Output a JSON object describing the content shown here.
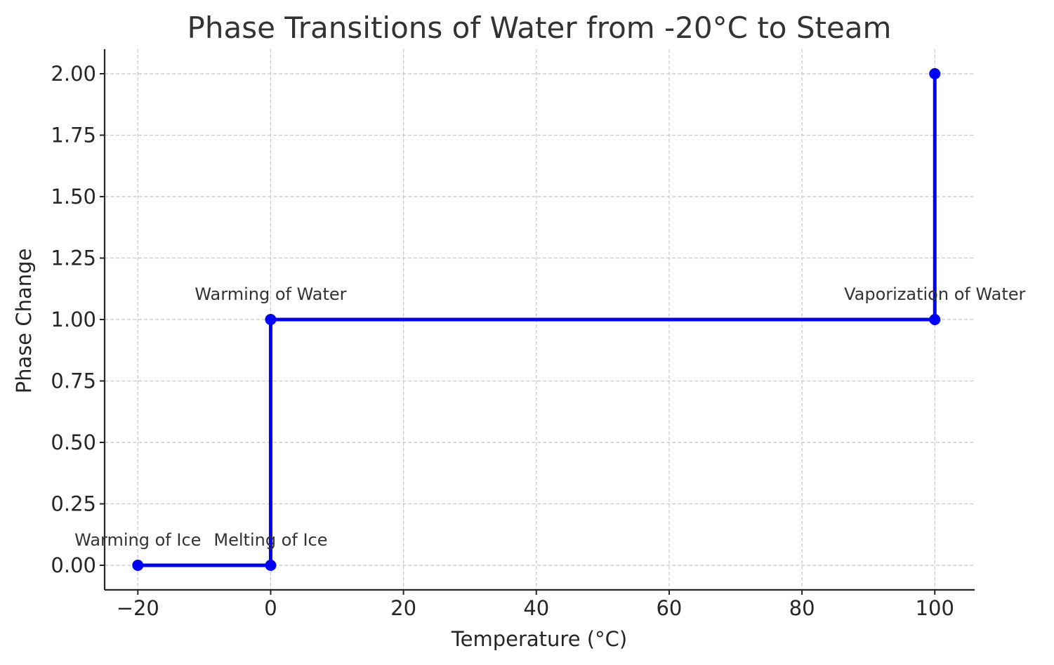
{
  "chart_data": {
    "type": "line",
    "title": "Phase Transitions of Water from -20°C to Steam",
    "xlabel": "Temperature (°C)",
    "ylabel": "Phase Change",
    "xlim": [
      -25,
      106
    ],
    "ylim": [
      -0.1,
      2.1
    ],
    "grid": true,
    "x_ticks": [
      {
        "value": -20,
        "label": "−20"
      },
      {
        "value": 0,
        "label": "0"
      },
      {
        "value": 20,
        "label": "20"
      },
      {
        "value": 40,
        "label": "40"
      },
      {
        "value": 60,
        "label": "60"
      },
      {
        "value": 80,
        "label": "80"
      },
      {
        "value": 100,
        "label": "100"
      }
    ],
    "y_ticks": [
      {
        "value": 0.0,
        "label": "0.00"
      },
      {
        "value": 0.25,
        "label": "0.25"
      },
      {
        "value": 0.5,
        "label": "0.50"
      },
      {
        "value": 0.75,
        "label": "0.75"
      },
      {
        "value": 1.0,
        "label": "1.00"
      },
      {
        "value": 1.25,
        "label": "1.25"
      },
      {
        "value": 1.5,
        "label": "1.50"
      },
      {
        "value": 1.75,
        "label": "1.75"
      },
      {
        "value": 2.0,
        "label": "2.00"
      }
    ],
    "series": [
      {
        "color": "#0000ff",
        "step": true,
        "points": [
          {
            "x": -20,
            "y": 0
          },
          {
            "x": 0,
            "y": 0
          },
          {
            "x": 0,
            "y": 1
          },
          {
            "x": 100,
            "y": 1
          },
          {
            "x": 100,
            "y": 2
          }
        ]
      }
    ],
    "annotations": [
      {
        "text": "Warming of Ice",
        "x": -20,
        "y": 0
      },
      {
        "text": "Melting of Ice",
        "x": 0,
        "y": 0
      },
      {
        "text": "Warming of Water",
        "x": 0,
        "y": 1
      },
      {
        "text": "Vaporization of Water",
        "x": 100,
        "y": 1
      }
    ]
  }
}
